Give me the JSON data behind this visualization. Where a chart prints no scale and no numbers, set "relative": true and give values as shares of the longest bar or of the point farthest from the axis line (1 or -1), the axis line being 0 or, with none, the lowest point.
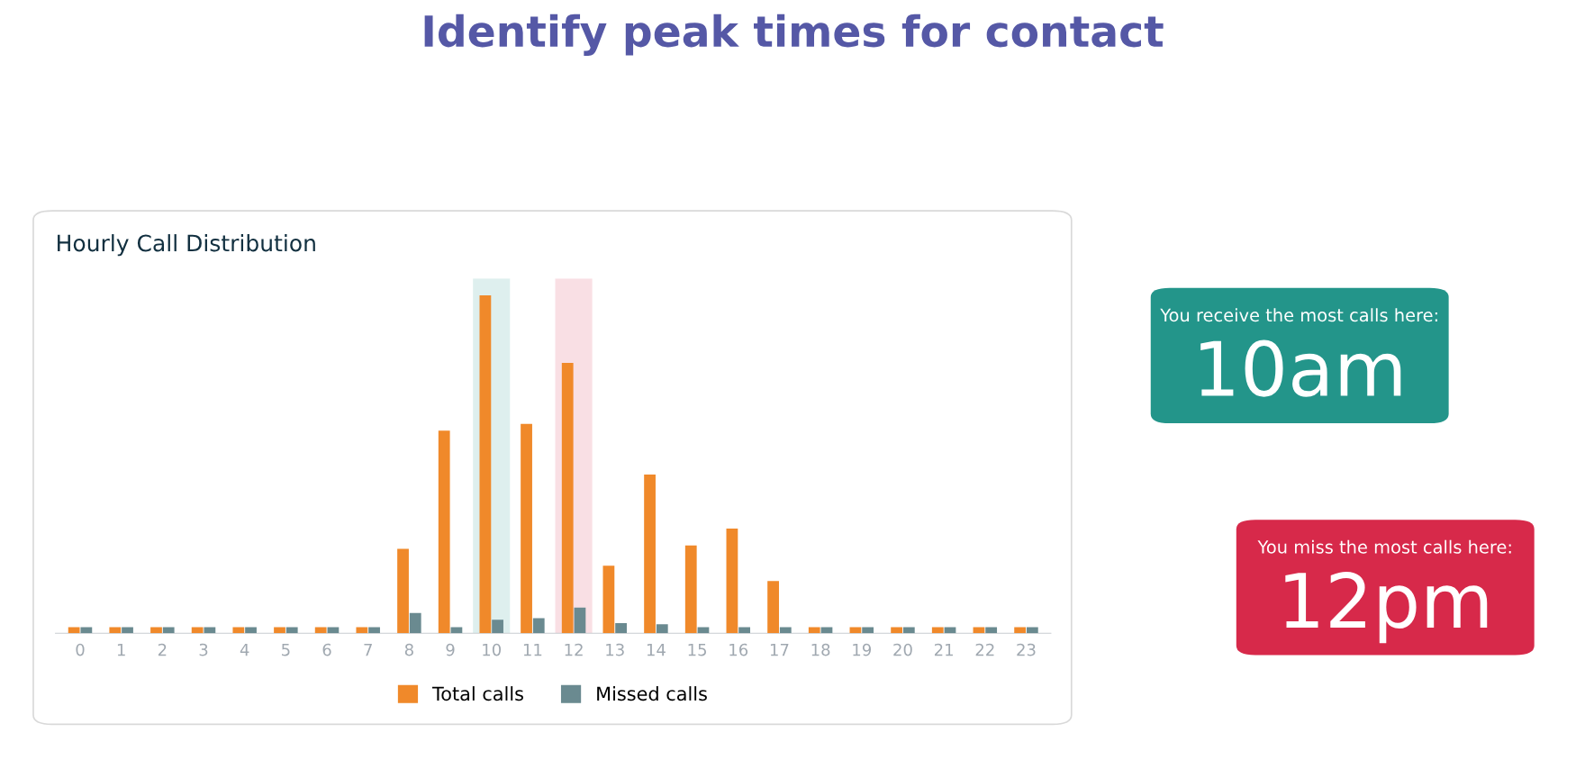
{
  "chart_data": {
    "type": "bar",
    "title": "Identify peak times for contact",
    "subtitle": "Hourly Call Distribution",
    "categories": [
      "0",
      "1",
      "2",
      "3",
      "4",
      "5",
      "6",
      "7",
      "8",
      "9",
      "10",
      "11",
      "12",
      "13",
      "14",
      "15",
      "16",
      "17",
      "18",
      "19",
      "20",
      "21",
      "22",
      "23"
    ],
    "relative": true,
    "series": [
      {
        "name": "Total calls",
        "color": "#f0892a",
        "values": [
          0.018,
          0.018,
          0.018,
          0.018,
          0.018,
          0.018,
          0.018,
          0.018,
          0.25,
          0.6,
          1,
          0.62,
          0.8,
          0.2,
          0.47,
          0.26,
          0.31,
          0.155,
          0.018,
          0.018,
          0.018,
          0.018,
          0.018,
          0.018
        ]
      },
      {
        "name": "Missed calls",
        "color": "#6a8a90",
        "values": [
          0.018,
          0.018,
          0.018,
          0.018,
          0.018,
          0.018,
          0.018,
          0.018,
          0.06,
          0.018,
          0.04,
          0.045,
          0.076,
          0.03,
          0.027,
          0.018,
          0.018,
          0.018,
          0.018,
          0.018,
          0.018,
          0.018,
          0.018,
          0.018
        ]
      }
    ],
    "bands": [
      {
        "axis": "x",
        "from": "10",
        "to": "10",
        "color": "#23958a"
      },
      {
        "axis": "x",
        "from": "12",
        "to": "12",
        "color": "#d7294a"
      }
    ],
    "annotations": [
      "You receive the most calls here:\n10am",
      "You miss the most calls here:\n12pm"
    ],
    "legend": "bottom"
  }
}
